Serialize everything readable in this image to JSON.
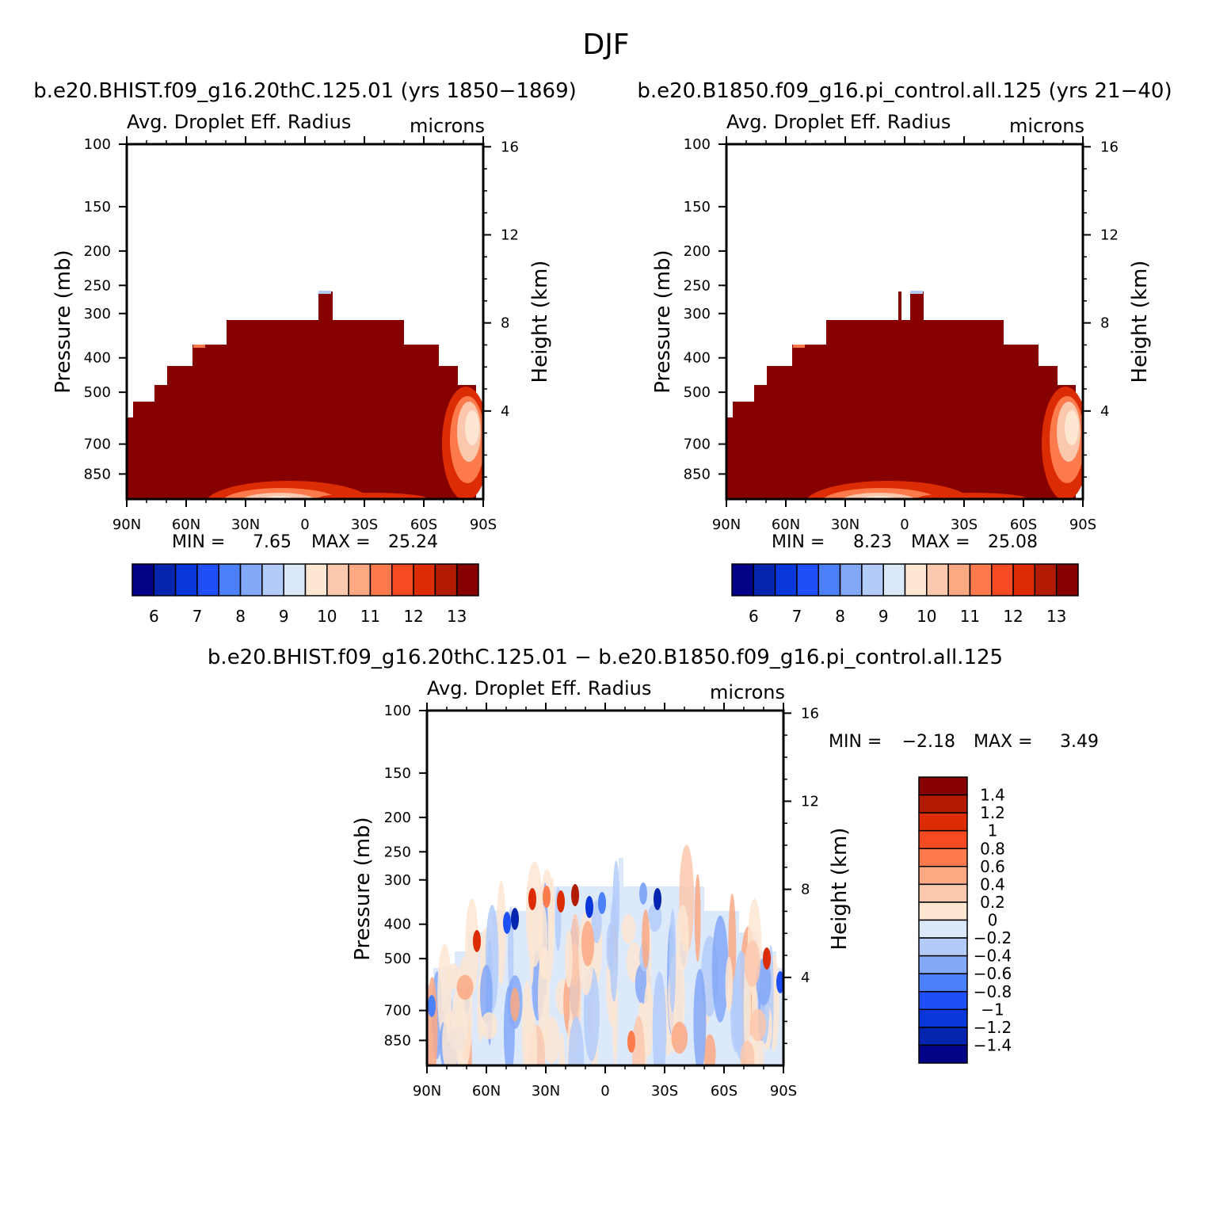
{
  "page": {
    "title": "DJF",
    "left_subtitle": "b.e20.BHIST.f09_g16.20thC.125.01 (yrs 1850−1869)",
    "right_subtitle": "b.e20.B1850.f09_g16.pi_control.all.125 (yrs 21−40)",
    "diff_subtitle": "b.e20.BHIST.f09_g16.20thC.125.01 − b.e20.B1850.f09_g16.pi_control.all.125"
  },
  "chart_data": [
    {
      "type": "heatmap",
      "panel": "top-left",
      "var_label": "Avg. Droplet Eff. Radius",
      "units_label": "microns",
      "ylabel": "Pressure (mb)",
      "y2label": "Height (km)",
      "xticks": [
        "90N",
        "60N",
        "30N",
        "0",
        "30S",
        "60S",
        "90S"
      ],
      "yticks": [
        100,
        150,
        200,
        250,
        300,
        400,
        500,
        700,
        850
      ],
      "y2ticks": [
        16,
        12,
        8,
        4
      ],
      "ylim": [
        100,
        1000
      ],
      "min_label": "MIN =",
      "min_value": "7.65",
      "max_label": "MAX =",
      "max_value": "25.24",
      "colorbar_labels": [
        "6",
        "7",
        "8",
        "9",
        "10",
        "11",
        "12",
        "13"
      ],
      "colorbar_colors": [
        "#020387",
        "#0524af",
        "#0a37dc",
        "#1f4ff8",
        "#4c80f8",
        "#84a8f8",
        "#b3cbf9",
        "#dce9fb",
        "#fde6d2",
        "#fcc8ad",
        "#fca882",
        "#fc7a4c",
        "#f64a22",
        "#dc2c03",
        "#b21b02",
        "#870000"
      ],
      "level_top_profile": [
        530,
        500,
        480,
        460,
        440,
        440,
        420,
        420,
        400,
        400,
        400,
        400,
        400,
        400,
        400,
        400,
        400,
        360,
        360,
        400,
        400,
        400,
        400,
        400,
        400,
        400,
        400,
        400,
        420,
        420,
        440,
        440,
        460,
        480,
        480,
        500
      ]
    },
    {
      "type": "heatmap",
      "panel": "top-right",
      "var_label": "Avg. Droplet Eff. Radius",
      "units_label": "microns",
      "ylabel": "Pressure (mb)",
      "y2label": "Height (km)",
      "xticks": [
        "90N",
        "60N",
        "30N",
        "0",
        "30S",
        "60S",
        "90S"
      ],
      "yticks": [
        100,
        150,
        200,
        250,
        300,
        400,
        500,
        700,
        850
      ],
      "y2ticks": [
        16,
        12,
        8,
        4
      ],
      "ylim": [
        100,
        1000
      ],
      "min_label": "MIN =",
      "min_value": "8.23",
      "max_label": "MAX =",
      "max_value": "25.08",
      "colorbar_labels": [
        "6",
        "7",
        "8",
        "9",
        "10",
        "11",
        "12",
        "13"
      ],
      "colorbar_colors": [
        "#020387",
        "#0524af",
        "#0a37dc",
        "#1f4ff8",
        "#4c80f8",
        "#84a8f8",
        "#b3cbf9",
        "#dce9fb",
        "#fde6d2",
        "#fcc8ad",
        "#fca882",
        "#fc7a4c",
        "#f64a22",
        "#dc2c03",
        "#b21b02",
        "#870000"
      ]
    },
    {
      "type": "heatmap",
      "panel": "bottom",
      "var_label": "Avg. Droplet Eff. Radius",
      "units_label": "microns",
      "ylabel": "Pressure (mb)",
      "y2label": "Height (km)",
      "xticks": [
        "90N",
        "60N",
        "30N",
        "0",
        "30S",
        "60S",
        "90S"
      ],
      "yticks": [
        100,
        150,
        200,
        250,
        300,
        400,
        500,
        700,
        850
      ],
      "y2ticks": [
        16,
        12,
        8,
        4
      ],
      "ylim": [
        100,
        1000
      ],
      "min_label": "MIN =",
      "min_value": "−2.18",
      "max_label": "MAX =",
      "max_value": "3.49",
      "colorbar_labels": [
        "1.4",
        "1.2",
        "1",
        "0.8",
        "0.6",
        "0.4",
        "0.2",
        "0",
        "−0.2",
        "−0.4",
        "−0.6",
        "−0.8",
        "−1",
        "−1.2",
        "−1.4"
      ],
      "colorbar_colors": [
        "#870000",
        "#b21b02",
        "#dc2c03",
        "#f64a22",
        "#fc7a4c",
        "#fca882",
        "#fcc8ad",
        "#fde6d2",
        "#dce9fb",
        "#b3cbf9",
        "#84a8f8",
        "#4c80f8",
        "#1f4ff8",
        "#0a37dc",
        "#0524af",
        "#020387"
      ]
    }
  ]
}
